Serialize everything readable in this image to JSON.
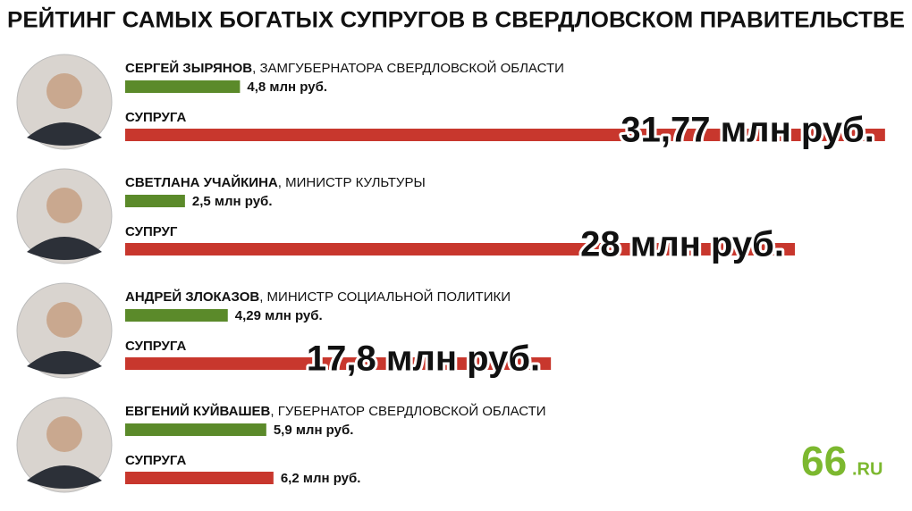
{
  "chart_data": {
    "type": "paired-bar",
    "title": "РЕЙТИНГ САМЫХ БОГАТЫХ СУПРУГОВ В СВЕРДЛОВСКОМ ПРАВИТЕЛЬСТВЕ",
    "categories": [
      "СЕРГЕЙ ЗЫРЯНОВ",
      "СВЕТЛАНА УЧАЙКИНА",
      "АНДРЕЙ ЗЛОКАЗОВ",
      "ЕВГЕНИЙ КУЙВАШЕВ"
    ],
    "roles": [
      ", ЗАМГУБЕРНАТОРА СВЕРДЛОВСКОЙ ОБЛАСТИ",
      ", МИНИСТР КУЛЬТУРЫ",
      ", МИНИСТР СОЦИАЛЬНОЙ ПОЛИТИКИ",
      ", ГУБЕРНАТОР СВЕРДЛОВСКОЙ ОБЛАСТИ"
    ],
    "spouse_labels": [
      "СУПРУГА",
      "СУПРУГ",
      "СУПРУГА",
      "СУПРУГА"
    ],
    "series": [
      {
        "color": "#5b8a2a",
        "values": [
          4.8,
          2.5,
          4.29,
          5.9
        ],
        "value_labels": [
          "4,8 млн руб.",
          "2,5 млн руб.",
          "4,29 млн руб.",
          "5,9 млн руб."
        ]
      },
      {
        "color": "#c8372d",
        "values": [
          31.77,
          28,
          17.8,
          6.2
        ],
        "value_labels": [
          "31,77 млн руб.",
          "28 млн руб.",
          "17,8 млн руб.",
          "6,2 млн руб."
        ]
      }
    ],
    "logo": {
      "main": "66",
      "suffix": ".RU"
    }
  }
}
